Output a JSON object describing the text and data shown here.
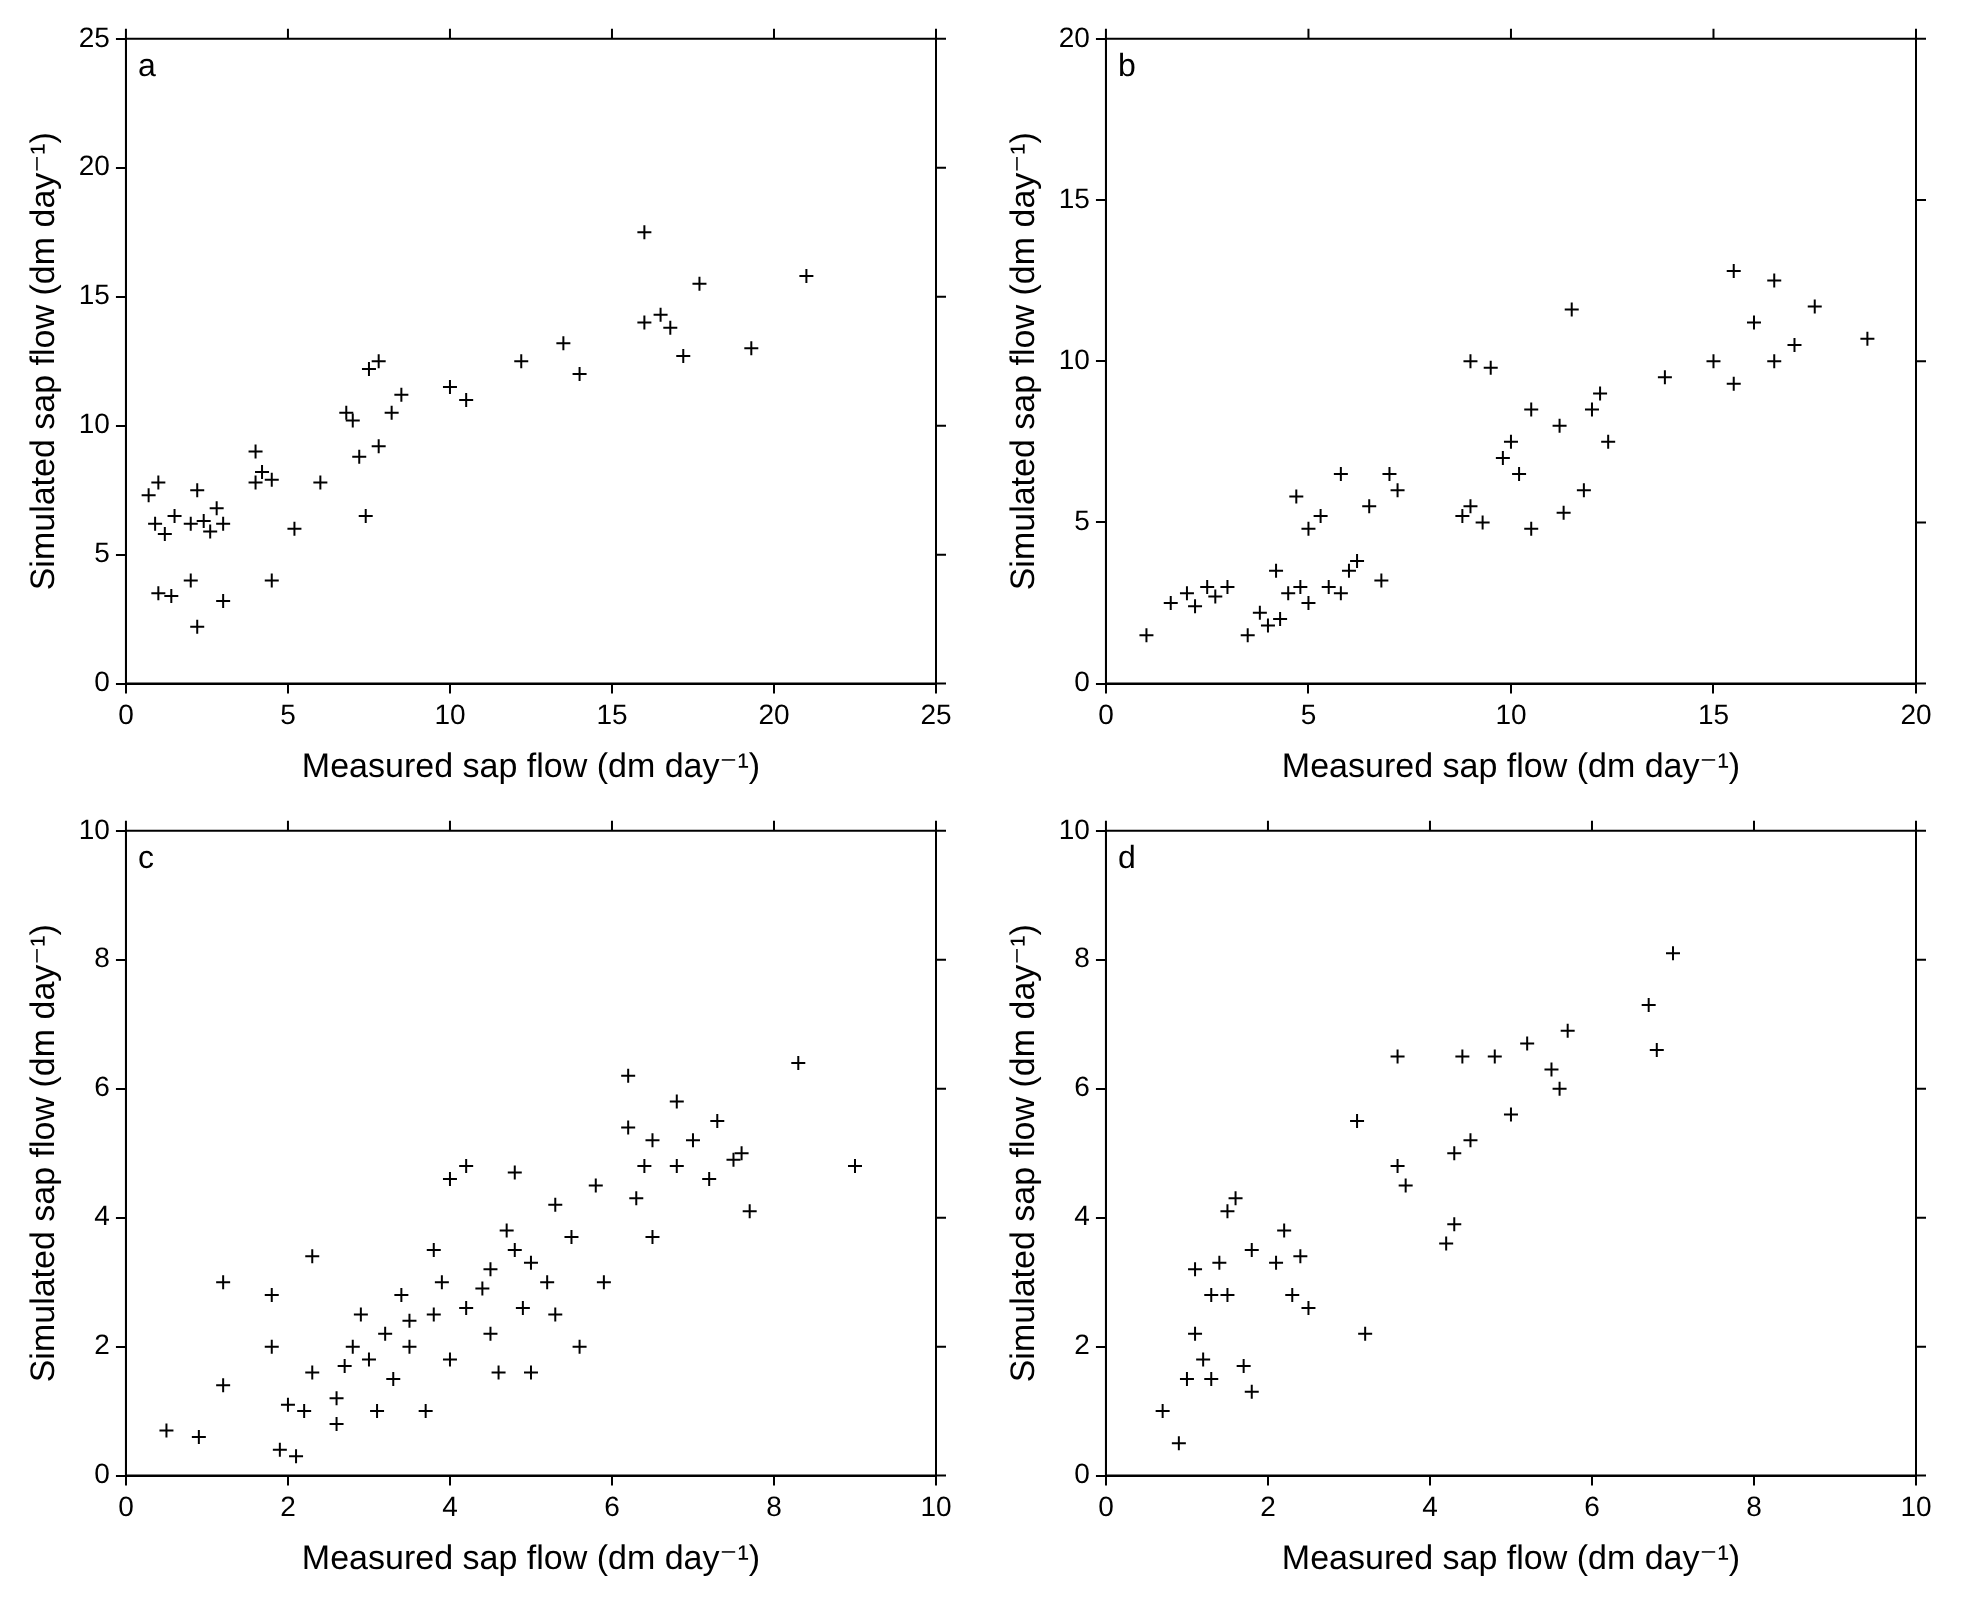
{
  "chart_data": [
    {
      "type": "scatter",
      "xlabel": "Measured sap flow (dm day⁻¹)",
      "ylabel": "Simulated sap flow (dm day⁻¹)",
      "annotations": [
        "a"
      ],
      "marker": "cross",
      "grid": false,
      "xlim": [
        0,
        25
      ],
      "xticks": [
        0,
        5,
        10,
        15,
        20,
        25
      ],
      "ylim": [
        0,
        25
      ],
      "yticks": [
        0,
        5,
        10,
        15,
        20,
        25
      ],
      "series": [
        {
          "color": "#000000",
          "x": [
            0.7,
            0.9,
            1.0,
            1.2,
            1.5,
            1.0,
            1.4,
            2.0,
            2.0,
            2.2,
            2.4,
            2.6,
            2.8,
            3.0,
            2.2,
            3.0,
            4.0,
            4.0,
            4.2,
            4.5,
            4.5,
            5.2,
            6.0,
            6.8,
            7.0,
            7.2,
            7.5,
            7.8,
            7.4,
            7.8,
            8.2,
            8.5,
            10.0,
            10.5,
            12.2,
            13.5,
            14.0,
            16.0,
            16.0,
            16.5,
            16.8,
            17.2,
            17.7,
            19.3,
            21.0
          ],
          "values": [
            7.3,
            6.2,
            7.8,
            5.8,
            6.5,
            3.5,
            3.4,
            4.0,
            6.2,
            7.5,
            6.3,
            5.9,
            6.8,
            6.2,
            2.2,
            3.2,
            7.8,
            9.0,
            8.2,
            7.9,
            4.0,
            6.0,
            7.8,
            10.5,
            10.2,
            8.8,
            12.2,
            12.5,
            6.5,
            9.2,
            10.5,
            11.2,
            11.5,
            11.0,
            12.5,
            13.2,
            12.0,
            17.5,
            14.0,
            14.3,
            13.8,
            12.7,
            15.5,
            13.0,
            15.8
          ]
        }
      ]
    },
    {
      "type": "scatter",
      "xlabel": "Measured sap flow (dm day⁻¹)",
      "ylabel": "Simulated sap flow (dm day⁻¹)",
      "annotations": [
        "b"
      ],
      "marker": "cross",
      "grid": false,
      "xlim": [
        0,
        20
      ],
      "xticks": [
        0,
        5,
        10,
        15,
        20
      ],
      "ylim": [
        0,
        20
      ],
      "yticks": [
        0,
        5,
        10,
        15,
        20
      ],
      "series": [
        {
          "color": "#000000",
          "x": [
            1.0,
            1.6,
            2.0,
            2.2,
            2.5,
            2.7,
            3.0,
            3.5,
            3.8,
            4.0,
            4.2,
            4.5,
            4.3,
            4.8,
            5.0,
            4.7,
            5.0,
            5.3,
            5.5,
            5.8,
            5.8,
            6.0,
            6.2,
            6.5,
            6.8,
            7.0,
            7.2,
            8.8,
            9.0,
            9.0,
            9.3,
            9.5,
            9.8,
            10.0,
            10.2,
            10.5,
            10.5,
            11.2,
            11.3,
            11.5,
            11.8,
            12.0,
            12.2,
            12.4,
            13.8,
            15.0,
            15.5,
            15.5,
            16.0,
            16.5,
            16.5,
            17.0,
            17.5,
            18.8
          ],
          "values": [
            1.5,
            2.5,
            2.8,
            2.4,
            3.0,
            2.7,
            3.0,
            1.5,
            2.2,
            1.8,
            3.5,
            2.8,
            2.0,
            3.0,
            2.5,
            5.8,
            4.8,
            5.2,
            3.0,
            6.5,
            2.8,
            3.5,
            3.8,
            5.5,
            3.2,
            6.5,
            6.0,
            5.2,
            10.0,
            5.5,
            5.0,
            9.8,
            7.0,
            7.5,
            6.5,
            8.5,
            4.8,
            8.0,
            5.3,
            11.6,
            6.0,
            8.5,
            9.0,
            7.5,
            9.5,
            10.0,
            12.8,
            9.3,
            11.2,
            12.5,
            10.0,
            10.5,
            11.7,
            10.7
          ]
        }
      ]
    },
    {
      "type": "scatter",
      "xlabel": "Measured sap flow (dm day⁻¹)",
      "ylabel": "Simulated sap flow (dm day⁻¹)",
      "annotations": [
        "c"
      ],
      "marker": "cross",
      "grid": false,
      "xlim": [
        0,
        10
      ],
      "xticks": [
        0,
        2,
        4,
        6,
        8,
        10
      ],
      "ylim": [
        0,
        10
      ],
      "yticks": [
        0,
        2,
        4,
        6,
        8,
        10
      ],
      "series": [
        {
          "color": "#000000",
          "x": [
            0.5,
            0.9,
            1.2,
            1.2,
            1.8,
            1.8,
            1.9,
            2.0,
            2.1,
            2.2,
            2.3,
            2.3,
            2.6,
            2.6,
            2.7,
            2.8,
            2.9,
            3.0,
            3.1,
            3.2,
            3.3,
            3.4,
            3.5,
            3.5,
            3.7,
            3.8,
            3.8,
            3.9,
            4.0,
            4.0,
            4.2,
            4.2,
            4.4,
            4.5,
            4.5,
            4.6,
            4.7,
            4.8,
            4.8,
            4.9,
            5.0,
            5.0,
            5.2,
            5.3,
            5.3,
            5.5,
            5.6,
            5.8,
            5.9,
            6.2,
            6.2,
            6.3,
            6.4,
            6.5,
            6.5,
            6.8,
            6.8,
            7.0,
            7.2,
            7.3,
            7.5,
            7.6,
            7.7,
            8.3,
            9.0
          ],
          "values": [
            0.7,
            0.6,
            1.4,
            3.0,
            2.8,
            2.0,
            0.4,
            1.1,
            0.3,
            1.0,
            1.6,
            3.4,
            1.2,
            0.8,
            1.7,
            2.0,
            2.5,
            1.8,
            1.0,
            2.2,
            1.5,
            2.8,
            2.0,
            2.4,
            1.0,
            3.5,
            2.5,
            3.0,
            4.6,
            1.8,
            4.8,
            2.6,
            2.9,
            3.2,
            2.2,
            1.6,
            3.8,
            3.5,
            4.7,
            2.6,
            3.3,
            1.6,
            3.0,
            2.5,
            4.2,
            3.7,
            2.0,
            4.5,
            3.0,
            6.2,
            5.4,
            4.3,
            4.8,
            5.2,
            3.7,
            5.8,
            4.8,
            5.2,
            4.6,
            5.5,
            4.9,
            5.0,
            4.1,
            6.4,
            4.8
          ]
        }
      ]
    },
    {
      "type": "scatter",
      "xlabel": "Measured sap flow (dm day⁻¹)",
      "ylabel": "Simulated sap flow (dm day⁻¹)",
      "annotations": [
        "d"
      ],
      "marker": "cross",
      "grid": false,
      "xlim": [
        0,
        10
      ],
      "xticks": [
        0,
        2,
        4,
        6,
        8,
        10
      ],
      "ylim": [
        0,
        10
      ],
      "yticks": [
        0,
        2,
        4,
        6,
        8,
        10
      ],
      "series": [
        {
          "color": "#000000",
          "x": [
            0.7,
            0.9,
            1.0,
            1.1,
            1.1,
            1.2,
            1.3,
            1.3,
            1.4,
            1.5,
            1.5,
            1.6,
            1.7,
            1.8,
            1.8,
            2.1,
            2.2,
            2.3,
            2.4,
            2.5,
            3.1,
            3.2,
            3.6,
            3.6,
            3.7,
            4.2,
            4.3,
            4.3,
            4.4,
            4.5,
            4.8,
            5.0,
            5.2,
            5.5,
            5.6,
            5.7,
            6.7,
            6.8,
            7.0
          ],
          "values": [
            1.0,
            0.5,
            1.5,
            2.2,
            3.2,
            1.8,
            2.8,
            1.5,
            3.3,
            4.1,
            2.8,
            4.3,
            1.7,
            3.5,
            1.3,
            3.3,
            3.8,
            2.8,
            3.4,
            2.6,
            5.5,
            2.2,
            4.8,
            6.5,
            4.5,
            3.6,
            5.0,
            3.9,
            6.5,
            5.2,
            6.5,
            5.6,
            6.7,
            6.3,
            6.0,
            6.9,
            7.3,
            6.6,
            8.1
          ]
        }
      ]
    }
  ]
}
